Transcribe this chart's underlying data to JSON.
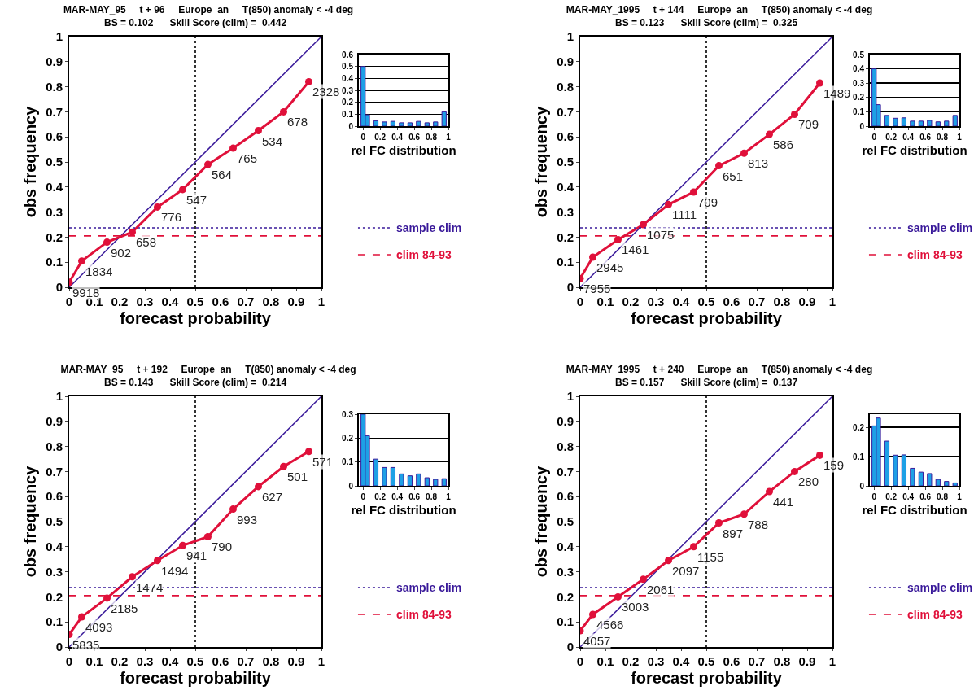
{
  "chart_data": [
    {
      "type": "line",
      "title": "MAR-MAY_95     t + 96     Europe  an     T(850) anomaly < -4 deg",
      "subtitle": "BS = 0.102      Skill Score (clim) =  0.442",
      "xlabel": "forecast probability",
      "ylabel": "obs frequency",
      "xlim": [
        0,
        1
      ],
      "ylim": [
        0,
        1
      ],
      "xticks": [
        0,
        0.1,
        0.2,
        0.3,
        0.4,
        0.5,
        0.6,
        0.7,
        0.8,
        0.9,
        1
      ],
      "yticks": [
        0,
        0.1,
        0.2,
        0.3,
        0.4,
        0.5,
        0.6,
        0.7,
        0.8,
        0.9,
        1
      ],
      "marker": "circle",
      "series": [
        {
          "x": [
            0,
            1
          ],
          "values": [
            0,
            1
          ],
          "color": "#3a1a9a",
          "marker": "none"
        },
        {
          "x": [
            0,
            0.05,
            0.15,
            0.25,
            0.35,
            0.45,
            0.55,
            0.65,
            0.75,
            0.85,
            0.95
          ],
          "values": [
            0.02,
            0.105,
            0.18,
            0.22,
            0.32,
            0.39,
            0.49,
            0.555,
            0.625,
            0.7,
            0.82
          ],
          "color": "#e0103a"
        }
      ],
      "annotations": [
        {
          "text": "9918",
          "x": 0,
          "y": 0.02
        },
        {
          "text": "1834",
          "x": 0.05,
          "y": 0.105
        },
        {
          "text": "902",
          "x": 0.15,
          "y": 0.18
        },
        {
          "text": "658",
          "x": 0.25,
          "y": 0.22
        },
        {
          "text": "776",
          "x": 0.35,
          "y": 0.32
        },
        {
          "text": "547",
          "x": 0.45,
          "y": 0.39
        },
        {
          "text": "564",
          "x": 0.55,
          "y": 0.49
        },
        {
          "text": "765",
          "x": 0.65,
          "y": 0.555
        },
        {
          "text": "534",
          "x": 0.75,
          "y": 0.625
        },
        {
          "text": "678",
          "x": 0.85,
          "y": 0.7
        },
        {
          "text": "2328",
          "x": 0.95,
          "y": 0.82
        }
      ],
      "ref_lines": [
        {
          "axis": "x",
          "value": 0.5,
          "color": "#000000",
          "line_style": "dotted"
        },
        {
          "axis": "y",
          "value": 0.237,
          "label": "sample clim",
          "color": "#3a1a9a",
          "line_style": "dotted"
        },
        {
          "axis": "y",
          "value": 0.205,
          "label": "clim 84-93",
          "color": "#e0103a",
          "line_style": "dashed"
        }
      ]
    },
    {
      "type": "bar",
      "xlabel": "rel FC distribution",
      "x": [
        0,
        0.05,
        0.15,
        0.25,
        0.35,
        0.45,
        0.55,
        0.65,
        0.75,
        0.85,
        0.95
      ],
      "values": [
        0.5,
        0.095,
        0.045,
        0.035,
        0.04,
        0.028,
        0.028,
        0.04,
        0.028,
        0.035,
        0.12
      ],
      "color": "#1ea0e6",
      "xlim": [
        -0.05,
        1
      ],
      "ylim": [
        0,
        0.6
      ],
      "xticks": [
        0,
        0.2,
        0.4,
        0.6,
        0.8,
        1
      ],
      "yticks": [
        0,
        0.1,
        0.2,
        0.3,
        0.4,
        0.5,
        0.6
      ],
      "grid": "y"
    },
    {
      "type": "line",
      "title": "MAR-MAY_1995     t + 144     Europe  an     T(850) anomaly < -4 deg",
      "subtitle": "BS = 0.123      Skill Score (clim) =  0.325",
      "xlabel": "forecast probability",
      "ylabel": "obs frequency",
      "xlim": [
        0,
        1
      ],
      "ylim": [
        0,
        1
      ],
      "xticks": [
        0,
        0.1,
        0.2,
        0.3,
        0.4,
        0.5,
        0.6,
        0.7,
        0.8,
        0.9,
        1
      ],
      "yticks": [
        0,
        0.1,
        0.2,
        0.3,
        0.4,
        0.5,
        0.6,
        0.7,
        0.8,
        0.9,
        1
      ],
      "marker": "circle",
      "series": [
        {
          "x": [
            0,
            1
          ],
          "values": [
            0,
            1
          ],
          "color": "#3a1a9a",
          "marker": "none"
        },
        {
          "x": [
            0,
            0.05,
            0.15,
            0.25,
            0.35,
            0.45,
            0.55,
            0.65,
            0.75,
            0.85,
            0.95
          ],
          "values": [
            0.035,
            0.12,
            0.19,
            0.25,
            0.33,
            0.38,
            0.485,
            0.535,
            0.61,
            0.69,
            0.815
          ],
          "color": "#e0103a"
        }
      ],
      "annotations": [
        {
          "text": "7955",
          "x": 0,
          "y": 0.035
        },
        {
          "text": "2945",
          "x": 0.05,
          "y": 0.12
        },
        {
          "text": "1461",
          "x": 0.15,
          "y": 0.19
        },
        {
          "text": "1075",
          "x": 0.25,
          "y": 0.25
        },
        {
          "text": "1111",
          "x": 0.35,
          "y": 0.33
        },
        {
          "text": "709",
          "x": 0.45,
          "y": 0.38
        },
        {
          "text": "651",
          "x": 0.55,
          "y": 0.485
        },
        {
          "text": "813",
          "x": 0.65,
          "y": 0.535
        },
        {
          "text": "586",
          "x": 0.75,
          "y": 0.61
        },
        {
          "text": "709",
          "x": 0.85,
          "y": 0.69
        },
        {
          "text": "1489",
          "x": 0.95,
          "y": 0.815
        }
      ],
      "ref_lines": [
        {
          "axis": "x",
          "value": 0.5,
          "color": "#000000",
          "line_style": "dotted"
        },
        {
          "axis": "y",
          "value": 0.237,
          "label": "sample clim",
          "color": "#3a1a9a",
          "line_style": "dotted"
        },
        {
          "axis": "y",
          "value": 0.205,
          "label": "clim 84-93",
          "color": "#e0103a",
          "line_style": "dashed"
        }
      ]
    },
    {
      "type": "bar",
      "xlabel": "rel FC distribution",
      "x": [
        0,
        0.05,
        0.15,
        0.25,
        0.35,
        0.45,
        0.55,
        0.65,
        0.75,
        0.85,
        0.95
      ],
      "values": [
        0.4,
        0.15,
        0.075,
        0.055,
        0.058,
        0.035,
        0.035,
        0.04,
        0.03,
        0.035,
        0.075
      ],
      "color": "#1ea0e6",
      "xlim": [
        -0.05,
        1
      ],
      "ylim": [
        0,
        0.5
      ],
      "xticks": [
        0,
        0.2,
        0.4,
        0.6,
        0.8,
        1
      ],
      "yticks": [
        0,
        0.1,
        0.2,
        0.3,
        0.4,
        0.5
      ],
      "grid": "y"
    },
    {
      "type": "line",
      "title": "MAR-MAY_95     t + 192     Europe  an     T(850) anomaly < -4 deg",
      "subtitle": "BS = 0.143      Skill Score (clim) =  0.214",
      "xlabel": "forecast probability",
      "ylabel": "obs frequency",
      "xlim": [
        0,
        1
      ],
      "ylim": [
        0,
        1
      ],
      "xticks": [
        0,
        0.1,
        0.2,
        0.3,
        0.4,
        0.5,
        0.6,
        0.7,
        0.8,
        0.9,
        1
      ],
      "yticks": [
        0,
        0.1,
        0.2,
        0.3,
        0.4,
        0.5,
        0.6,
        0.7,
        0.8,
        0.9,
        1
      ],
      "marker": "circle",
      "series": [
        {
          "x": [
            0,
            1
          ],
          "values": [
            0,
            1
          ],
          "color": "#3a1a9a",
          "marker": "none"
        },
        {
          "x": [
            0,
            0.05,
            0.15,
            0.25,
            0.35,
            0.45,
            0.55,
            0.65,
            0.75,
            0.85,
            0.95
          ],
          "values": [
            0.05,
            0.12,
            0.195,
            0.28,
            0.345,
            0.405,
            0.44,
            0.55,
            0.64,
            0.72,
            0.78
          ],
          "color": "#e0103a"
        }
      ],
      "annotations": [
        {
          "text": "5835",
          "x": 0,
          "y": 0.05
        },
        {
          "text": "4093",
          "x": 0.05,
          "y": 0.12
        },
        {
          "text": "2185",
          "x": 0.15,
          "y": 0.195
        },
        {
          "text": "1474",
          "x": 0.25,
          "y": 0.28
        },
        {
          "text": "1494",
          "x": 0.35,
          "y": 0.345
        },
        {
          "text": "941",
          "x": 0.45,
          "y": 0.405
        },
        {
          "text": "790",
          "x": 0.55,
          "y": 0.44
        },
        {
          "text": "993",
          "x": 0.65,
          "y": 0.55
        },
        {
          "text": "627",
          "x": 0.75,
          "y": 0.64
        },
        {
          "text": "501",
          "x": 0.85,
          "y": 0.72
        },
        {
          "text": "571",
          "x": 0.95,
          "y": 0.78
        }
      ],
      "ref_lines": [
        {
          "axis": "x",
          "value": 0.5,
          "color": "#000000",
          "line_style": "dotted"
        },
        {
          "axis": "y",
          "value": 0.237,
          "label": "sample clim",
          "color": "#3a1a9a",
          "line_style": "dotted"
        },
        {
          "axis": "y",
          "value": 0.205,
          "label": "clim 84-93",
          "color": "#e0103a",
          "line_style": "dashed"
        }
      ]
    },
    {
      "type": "bar",
      "xlabel": "rel FC distribution",
      "x": [
        0,
        0.05,
        0.15,
        0.25,
        0.35,
        0.45,
        0.55,
        0.65,
        0.75,
        0.85,
        0.95
      ],
      "values": [
        0.3,
        0.21,
        0.112,
        0.077,
        0.077,
        0.05,
        0.042,
        0.05,
        0.034,
        0.027,
        0.03
      ],
      "color": "#1ea0e6",
      "xlim": [
        -0.05,
        1
      ],
      "ylim": [
        0,
        0.3
      ],
      "xticks": [
        0,
        0.2,
        0.4,
        0.6,
        0.8,
        1
      ],
      "yticks": [
        0,
        0.1,
        0.2,
        0.3
      ],
      "grid": "y"
    },
    {
      "type": "line",
      "title": "MAR-MAY_1995     t + 240     Europe  an     T(850) anomaly < -4 deg",
      "subtitle": "BS = 0.157      Skill Score (clim) =  0.137",
      "xlabel": "forecast probability",
      "ylabel": "obs frequency",
      "xlim": [
        0,
        1
      ],
      "ylim": [
        0,
        1
      ],
      "xticks": [
        0,
        0.1,
        0.2,
        0.3,
        0.4,
        0.5,
        0.6,
        0.7,
        0.8,
        0.9,
        1
      ],
      "yticks": [
        0,
        0.1,
        0.2,
        0.3,
        0.4,
        0.5,
        0.6,
        0.7,
        0.8,
        0.9,
        1
      ],
      "marker": "circle",
      "series": [
        {
          "x": [
            0,
            1
          ],
          "values": [
            0,
            1
          ],
          "color": "#3a1a9a",
          "marker": "none"
        },
        {
          "x": [
            0,
            0.05,
            0.15,
            0.25,
            0.35,
            0.45,
            0.55,
            0.65,
            0.75,
            0.85,
            0.95
          ],
          "values": [
            0.065,
            0.13,
            0.2,
            0.27,
            0.345,
            0.4,
            0.495,
            0.53,
            0.62,
            0.7,
            0.765
          ],
          "color": "#e0103a"
        }
      ],
      "annotations": [
        {
          "text": "4057",
          "x": 0,
          "y": 0.065
        },
        {
          "text": "4566",
          "x": 0.05,
          "y": 0.13
        },
        {
          "text": "3003",
          "x": 0.15,
          "y": 0.2
        },
        {
          "text": "2061",
          "x": 0.25,
          "y": 0.27
        },
        {
          "text": "2097",
          "x": 0.35,
          "y": 0.345
        },
        {
          "text": "1155",
          "x": 0.45,
          "y": 0.4
        },
        {
          "text": "897",
          "x": 0.55,
          "y": 0.495
        },
        {
          "text": "788",
          "x": 0.65,
          "y": 0.53
        },
        {
          "text": "441",
          "x": 0.75,
          "y": 0.62
        },
        {
          "text": "280",
          "x": 0.85,
          "y": 0.7
        },
        {
          "text": "159",
          "x": 0.95,
          "y": 0.765
        }
      ],
      "ref_lines": [
        {
          "axis": "x",
          "value": 0.5,
          "color": "#000000",
          "line_style": "dotted"
        },
        {
          "axis": "y",
          "value": 0.237,
          "label": "sample clim",
          "color": "#3a1a9a",
          "line_style": "dotted"
        },
        {
          "axis": "y",
          "value": 0.205,
          "label": "clim 84-93",
          "color": "#e0103a",
          "line_style": "dashed"
        }
      ]
    },
    {
      "type": "bar",
      "xlabel": "rel FC distribution",
      "x": [
        0,
        0.05,
        0.15,
        0.25,
        0.35,
        0.45,
        0.55,
        0.65,
        0.75,
        0.85,
        0.95
      ],
      "values": [
        0.205,
        0.232,
        0.153,
        0.105,
        0.106,
        0.06,
        0.047,
        0.042,
        0.022,
        0.015,
        0.01
      ],
      "color": "#1ea0e6",
      "xlim": [
        -0.05,
        1
      ],
      "ylim": [
        0,
        0.245
      ],
      "xticks": [
        0,
        0.2,
        0.4,
        0.6,
        0.8,
        1
      ],
      "yticks": [
        0,
        0.1,
        0.2
      ],
      "grid": "y"
    }
  ]
}
